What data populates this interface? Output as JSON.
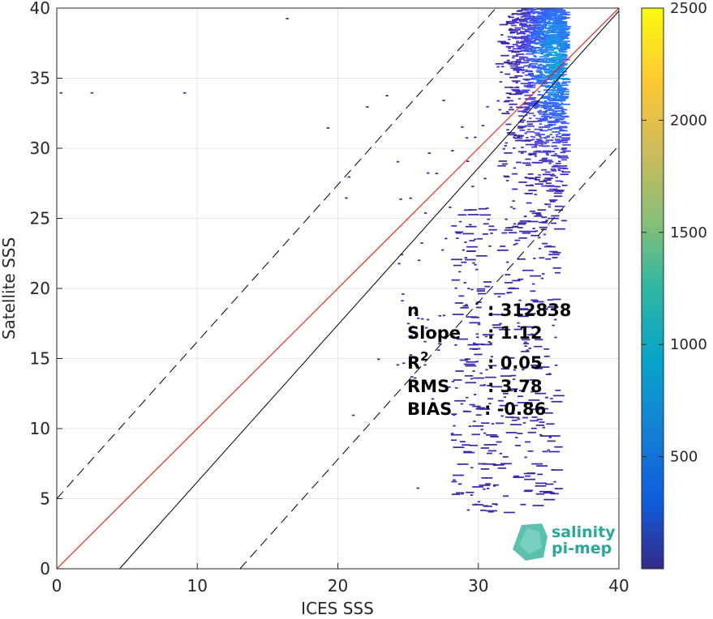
{
  "chart_data": {
    "type": "heatmap",
    "title": "",
    "xlabel": "ICES SSS",
    "ylabel": "Satellite SSS",
    "xlim": [
      0,
      40
    ],
    "ylim": [
      0,
      40
    ],
    "xticks": [
      "0",
      "10",
      "20",
      "30",
      "40"
    ],
    "yticks": [
      "0",
      "5",
      "10",
      "15",
      "20",
      "25",
      "30",
      "35",
      "40"
    ],
    "grid": true,
    "colormap": "parula",
    "colorbar": {
      "range": [
        0,
        2500
      ],
      "ticks": [
        "500",
        "1000",
        "1500",
        "2000",
        "2500"
      ]
    },
    "reference_lines": [
      {
        "kind": "identity (y = x)",
        "color": "#ff0000",
        "style": "solid",
        "slope": 1,
        "intercept": 0
      },
      {
        "kind": "regression",
        "color": "#000000",
        "style": "solid",
        "slope": 1.12,
        "intercept": -5.0
      },
      {
        "kind": "upper bound",
        "color": "#000000",
        "style": "dashed",
        "slope": 1.12,
        "intercept": 5.0
      },
      {
        "kind": "lower bound",
        "color": "#000000",
        "style": "dashed",
        "slope": 1.12,
        "intercept": -14.6
      }
    ],
    "density_core": {
      "x_range": [
        31,
        36
      ],
      "y_range": [
        22,
        40
      ],
      "peak_x": 35.2,
      "peak_y": 36.5
    },
    "stats": [
      {
        "label": "n",
        "value": ": 312838"
      },
      {
        "label": "Slope",
        "value": ": 1.12"
      },
      {
        "label": "R",
        "sup": "2",
        "value": ": 0.05"
      },
      {
        "label": "RMS",
        "value": ": 3.78"
      },
      {
        "label": "BIAS",
        "value": ": -0.86"
      }
    ]
  },
  "logo": {
    "line1": "salinity",
    "line2": "pi-mep"
  }
}
